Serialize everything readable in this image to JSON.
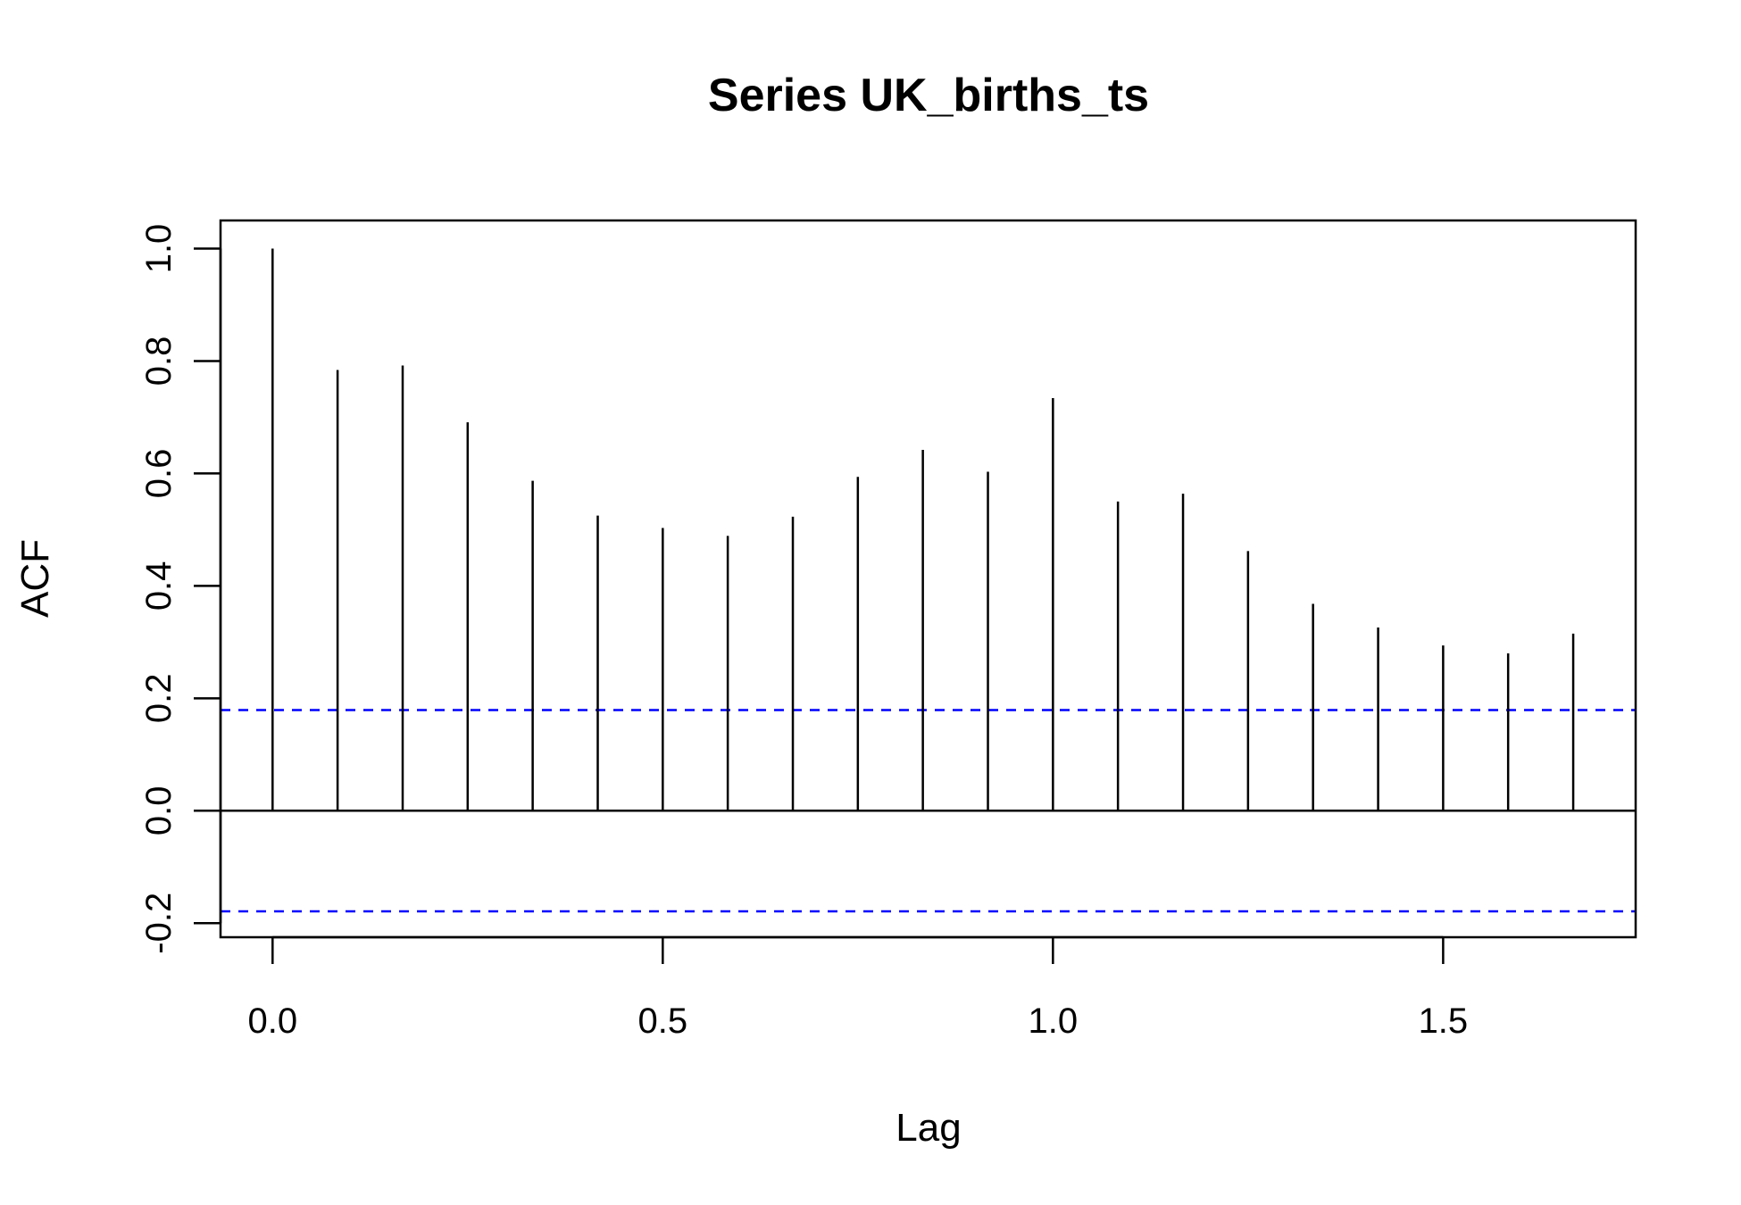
{
  "chart_data": {
    "type": "bar",
    "title": "Series  UK_births_ts",
    "xlabel": "Lag",
    "ylabel": "ACF",
    "xlim": [
      -0.0667,
      1.7467
    ],
    "ylim": [
      -0.225,
      1.05
    ],
    "x_ticks": [
      "0.0",
      "0.5",
      "1.0",
      "1.5"
    ],
    "y_ticks": [
      "-0.2",
      "0.0",
      "0.2",
      "0.4",
      "0.6",
      "0.8",
      "1.0"
    ],
    "lags": [
      0,
      0.0833,
      0.1667,
      0.25,
      0.3333,
      0.4167,
      0.5,
      0.5833,
      0.6667,
      0.75,
      0.8333,
      0.9167,
      1.0,
      1.0833,
      1.1667,
      1.25,
      1.3333,
      1.4167,
      1.5,
      1.5833,
      1.6667
    ],
    "values": [
      1.0,
      0.784,
      0.792,
      0.691,
      0.587,
      0.525,
      0.503,
      0.489,
      0.523,
      0.594,
      0.642,
      0.603,
      0.734,
      0.55,
      0.564,
      0.462,
      0.368,
      0.326,
      0.294,
      0.28,
      0.315
    ],
    "confidence_bound": 0.179,
    "colors": {
      "spike": "#000000",
      "bound": "#0000ff",
      "axis": "#000000"
    },
    "grid": false
  }
}
